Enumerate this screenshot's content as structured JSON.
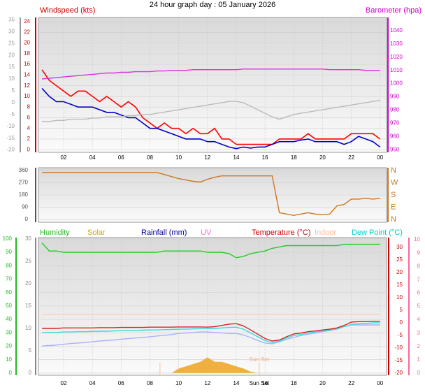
{
  "chart_data": [
    {
      "type": "line",
      "title": "24 hour graph day : 05 January 2026",
      "y_label": "Windspeed (kts)",
      "y2_label": "Barometer (hpa)",
      "x": [
        0.5,
        1,
        1.5,
        2,
        2.5,
        3,
        3.5,
        4,
        4.5,
        5,
        5.5,
        6,
        6.5,
        7,
        7.5,
        8,
        8.5,
        9,
        9.5,
        10,
        10.5,
        11,
        11.5,
        12,
        12.5,
        13,
        13.5,
        14,
        14.5,
        15,
        15.5,
        16,
        16.5,
        17,
        17.5,
        18,
        18.5,
        19,
        19.5,
        20,
        20.5,
        21,
        21.5,
        22,
        22.5,
        23,
        23.5,
        24
      ],
      "xlim": [
        0.25,
        24.45
      ],
      "xticks": [
        {
          "value": 2,
          "label": "02"
        },
        {
          "value": 4,
          "label": "04"
        },
        {
          "value": 6,
          "label": "06"
        },
        {
          "value": 8,
          "label": "08"
        },
        10,
        12,
        14,
        16,
        18,
        20,
        22,
        {
          "value": 24,
          "label": "00"
        }
      ],
      "ylim": [
        -0.5,
        24.8
      ],
      "yticks": [
        0,
        2,
        4,
        6,
        8,
        10,
        12,
        14,
        16,
        18,
        20,
        22,
        24
      ],
      "y2lim": [
        948,
        1050
      ],
      "y2ticks": [
        950,
        960,
        970,
        980,
        990,
        1000,
        1010,
        1020,
        1030,
        1040
      ],
      "y3lim": [
        -21,
        36
      ],
      "y3ticks": [
        -20,
        -15,
        -10,
        -5,
        0,
        5,
        10,
        15,
        20,
        25,
        30,
        35
      ],
      "axis_colors": {
        "y": "#cc0000",
        "y2": "#cc00cc",
        "y3": "#999999"
      },
      "grid": true,
      "series": [
        {
          "color": "#ff0000",
          "axis": "y",
          "values": [
            15,
            13,
            12,
            11,
            10,
            11,
            11,
            10,
            9,
            10,
            9,
            8,
            9,
            8,
            6,
            5,
            4,
            5,
            4,
            4,
            3,
            4,
            3,
            3,
            4,
            2,
            2,
            1,
            1,
            1,
            1,
            1,
            1,
            2,
            2,
            2,
            2,
            3,
            2,
            2,
            2,
            2,
            2,
            3,
            3,
            3,
            3,
            2
          ]
        },
        {
          "color": "#0000cc",
          "axis": "y",
          "values": [
            11.5,
            10,
            9,
            9,
            8.5,
            8,
            8,
            8,
            7.5,
            7,
            7,
            6.5,
            6,
            6,
            5,
            4,
            4,
            3.5,
            3,
            2.5,
            2,
            2,
            2,
            1.5,
            1.5,
            1,
            0.5,
            0.2,
            0.5,
            0.3,
            0.5,
            0.5,
            1,
            1.5,
            1.5,
            1.5,
            1.8,
            2,
            1.5,
            1.5,
            1.5,
            1.5,
            1,
            1.5,
            2.5,
            2,
            1.5,
            0.5
          ]
        },
        {
          "color": "#dd33dd",
          "axis": "y2",
          "values": [
            1003.5,
            1004,
            1004.5,
            1005,
            1005.5,
            1006,
            1006.5,
            1007,
            1007.5,
            1008,
            1008,
            1008.5,
            1008.5,
            1009,
            1009,
            1009,
            1009.5,
            1009.5,
            1010,
            1010,
            1010,
            1010.5,
            1010.5,
            1010.5,
            1010.5,
            1010.5,
            1010.5,
            1010.5,
            1011,
            1011,
            1011,
            1011,
            1011,
            1011,
            1011,
            1011,
            1011,
            1011,
            1011,
            1011,
            1010.5,
            1010.5,
            1010.5,
            1010.5,
            1010.5,
            1010,
            1010,
            1010
          ]
        },
        {
          "color": "#bbbbbb",
          "axis": "y3",
          "values": [
            -8,
            -8,
            -7.5,
            -7.5,
            -7,
            -7,
            -7,
            -6.5,
            -6.5,
            -6,
            -6,
            -6,
            -5.5,
            -5.5,
            -5,
            -5,
            -4.5,
            -4,
            -3.5,
            -3,
            -2.5,
            -2,
            -1.5,
            -1,
            -0.5,
            0,
            0.5,
            0.5,
            0,
            -1.5,
            -3,
            -4.5,
            -6,
            -7,
            -6,
            -5,
            -4.5,
            -4,
            -3.5,
            -3,
            -2.5,
            -2,
            -1.5,
            -1,
            -0.5,
            0,
            0.5,
            1
          ]
        }
      ]
    },
    {
      "type": "line",
      "x": [
        0.5,
        1,
        1.5,
        2,
        2.5,
        3,
        3.5,
        4,
        4.5,
        5,
        5.5,
        6,
        6.5,
        7,
        7.5,
        8,
        8.5,
        9,
        9.5,
        10,
        10.5,
        11,
        11.5,
        12,
        12.5,
        13,
        13.5,
        14,
        14.5,
        15,
        15.5,
        16,
        16.5,
        17,
        17.5,
        18,
        18.5,
        19,
        19.5,
        20,
        20.5,
        21,
        21.5,
        22,
        22.5,
        23,
        23.5,
        24
      ],
      "xlim": [
        0.25,
        24.45
      ],
      "ylim": [
        -20,
        380
      ],
      "yticks": [
        0,
        90,
        180,
        270,
        360
      ],
      "y2lim": [
        -20,
        380
      ],
      "y2ticks": [
        {
          "value": 0,
          "label": "N"
        },
        {
          "value": 90,
          "label": "E"
        },
        {
          "value": 180,
          "label": "S"
        },
        {
          "value": 270,
          "label": "W"
        },
        {
          "value": 360,
          "label": "N"
        }
      ],
      "axis_colors": {
        "y": "#555555",
        "y2": "#cc7722"
      },
      "grid": true,
      "series": [
        {
          "color": "#cc7722",
          "axis": "y",
          "values": [
            345,
            345,
            345,
            345,
            345,
            345,
            345,
            345,
            345,
            345,
            345,
            345,
            345,
            345,
            345,
            345,
            345,
            330,
            315,
            300,
            290,
            280,
            275,
            295,
            310,
            320,
            320,
            320,
            320,
            320,
            320,
            320,
            320,
            50,
            40,
            30,
            40,
            50,
            40,
            35,
            40,
            100,
            110,
            150,
            150,
            155,
            150,
            155
          ]
        }
      ]
    },
    {
      "type": "line",
      "legend": [
        {
          "name": "Humidity",
          "color": "#22bb22"
        },
        {
          "name": "Solar",
          "color": "#ccaa00"
        },
        {
          "name": "Rainfall (mm)",
          "color": "#000099"
        },
        {
          "name": "UV",
          "color": "#ff66cc"
        },
        {
          "name": "Temperature (°C)",
          "color": "#cc0000"
        },
        {
          "name": "Indoor",
          "color": "#ffbb99"
        },
        {
          "name": "Dew Point (°C)",
          "color": "#00cccc"
        }
      ],
      "x": [
        0.5,
        1,
        1.5,
        2,
        2.5,
        3,
        3.5,
        4,
        4.5,
        5,
        5.5,
        6,
        6.5,
        7,
        7.5,
        8,
        8.5,
        9,
        9.5,
        10,
        10.5,
        11,
        11.5,
        12,
        12.5,
        13,
        13.5,
        14,
        14.5,
        15,
        15.5,
        16,
        16.5,
        17,
        17.5,
        18,
        18.5,
        19,
        19.5,
        20,
        20.5,
        21,
        21.5,
        22,
        22.5,
        23,
        23.5,
        24
      ],
      "xlim": [
        0.25,
        24.45
      ],
      "xticks": [
        {
          "value": 2,
          "label": "02"
        },
        {
          "value": 4,
          "label": "04"
        },
        {
          "value": 6,
          "label": "06"
        },
        {
          "value": 8,
          "label": "08"
        },
        10,
        12,
        14,
        {
          "value": 15.6,
          "label": "Sun Set"
        },
        16,
        18,
        20,
        22,
        {
          "value": 24,
          "label": "00"
        }
      ],
      "ylim": [
        -1.6,
        101
      ],
      "yticks": [
        0,
        10,
        20,
        30,
        40,
        50,
        60,
        70,
        80,
        90,
        100
      ],
      "y3lim": [
        -0.5,
        30.3
      ],
      "y3ticks": [
        0,
        5,
        10,
        15,
        20,
        25,
        30
      ],
      "y2lim": [
        -20.8,
        33.9
      ],
      "y2ticks": [
        -20,
        -15,
        -10,
        -5,
        0,
        5,
        10,
        15,
        20,
        25,
        30
      ],
      "y4lim": [
        -0.16,
        10.16
      ],
      "y4ticks": [
        0,
        1,
        2,
        3,
        4,
        5,
        6,
        7,
        8,
        9,
        10
      ],
      "axis_colors": {
        "y": "#22bb22",
        "y3": "#888888",
        "y2": "#cc0000",
        "y4": "#ff6699"
      },
      "grid": true,
      "sun_markers": [
        8.7,
        15.6
      ],
      "annotations": [
        {
          "text": "Sun Set",
          "x": 15.6
        }
      ],
      "series": [
        {
          "color": "#f0b040",
          "axis": "y3",
          "fill": true,
          "values": [
            0,
            0,
            0,
            0,
            0,
            0,
            0,
            0,
            0,
            0,
            0,
            0,
            0,
            0,
            0,
            0,
            0,
            0,
            0,
            1,
            1.5,
            2,
            2.5,
            3.5,
            2.5,
            2.5,
            2,
            1.5,
            1,
            0.3,
            0,
            0,
            0,
            0,
            0,
            0,
            0,
            0,
            0,
            0,
            0,
            0,
            0,
            0,
            0,
            0,
            0,
            0
          ]
        },
        {
          "color": "#ffccbb",
          "axis": "y2",
          "values": [
            3.3,
            3.3,
            3.3,
            3.3,
            3.3,
            3.3,
            3.3,
            3.3,
            3.3,
            3.3,
            3.3,
            3.3,
            3.3,
            3.3,
            3.3,
            3.3,
            3.3,
            3.3,
            3.3,
            3.3,
            3.3,
            3.3,
            3.3,
            3.3,
            3.3,
            3.3,
            3.3,
            3.3,
            3.3,
            3.3,
            3.3,
            3.3,
            3.3,
            3.3,
            3.3,
            3.3,
            3.3,
            3.3,
            3.3,
            3.3,
            3.3,
            3.3,
            3.3,
            3.3,
            3.3,
            3.3,
            3.3,
            3.3
          ]
        },
        {
          "color": "#aab0ff",
          "axis": "y2",
          "values": [
            -9.2,
            -9,
            -8.8,
            -8.5,
            -8.2,
            -8,
            -7.8,
            -7.5,
            -7.2,
            -7,
            -6.8,
            -6.5,
            -6.2,
            -6,
            -5.8,
            -5.5,
            -5.2,
            -5,
            -4.6,
            -4.2,
            -4,
            -3.8,
            -3.6,
            -3.6,
            -3.8,
            -4,
            -4.2,
            -4.2,
            -4.8,
            -5.8,
            -7,
            -8,
            -8.3,
            -7.5,
            -6.5,
            -5.8,
            -5,
            -4.5,
            -4,
            -3.5,
            -3,
            -2.5,
            -1.5,
            -0.8,
            -0.8,
            -0.8,
            -0.8,
            -0.8
          ]
        },
        {
          "color": "#33dddd",
          "axis": "y2",
          "values": [
            -3.9,
            -3.8,
            -3.8,
            -3.6,
            -3.6,
            -3.5,
            -3.5,
            -3.4,
            -3.3,
            -3.3,
            -3.2,
            -3.1,
            -3,
            -3,
            -2.9,
            -2.8,
            -2.8,
            -2.7,
            -2.6,
            -2.5,
            -2.5,
            -2.4,
            -2.3,
            -2.3,
            -2.2,
            -2,
            -1.8,
            -1.7,
            -2.5,
            -4,
            -5.5,
            -7,
            -7.8,
            -7.2,
            -6,
            -5,
            -4.6,
            -4,
            -3.6,
            -3.2,
            -2.8,
            -2.3,
            -1.5,
            -0.6,
            -0.4,
            -0.2,
            0,
            0
          ]
        },
        {
          "color": "#dd2222",
          "axis": "y2",
          "values": [
            -2.2,
            -2.2,
            -2.2,
            -2,
            -2,
            -2,
            -2,
            -2,
            -1.9,
            -1.9,
            -1.9,
            -1.8,
            -1.8,
            -1.8,
            -1.8,
            -1.7,
            -1.7,
            -1.7,
            -1.7,
            -1.6,
            -1.6,
            -1.6,
            -1.6,
            -1.7,
            -1.5,
            -1,
            -0.5,
            -0.3,
            -1.2,
            -2.8,
            -4.5,
            -6.2,
            -7.2,
            -6.8,
            -5.5,
            -4.4,
            -4,
            -3.5,
            -3.2,
            -2.8,
            -2.5,
            -2,
            -1,
            0.3,
            0.5,
            0.5,
            0.6,
            0.6
          ]
        },
        {
          "color": "#22cc22",
          "axis": "y",
          "values": [
            97,
            91,
            91,
            90,
            90,
            90,
            90,
            90,
            90,
            90,
            90,
            90,
            90,
            90,
            90,
            90,
            90,
            91,
            91,
            91,
            91,
            91,
            91,
            90,
            90,
            90,
            89,
            86,
            87,
            89,
            90,
            91,
            93,
            94,
            95,
            95,
            95,
            95,
            95,
            95,
            95,
            95,
            96,
            96,
            96,
            96,
            96,
            96
          ]
        }
      ]
    }
  ]
}
